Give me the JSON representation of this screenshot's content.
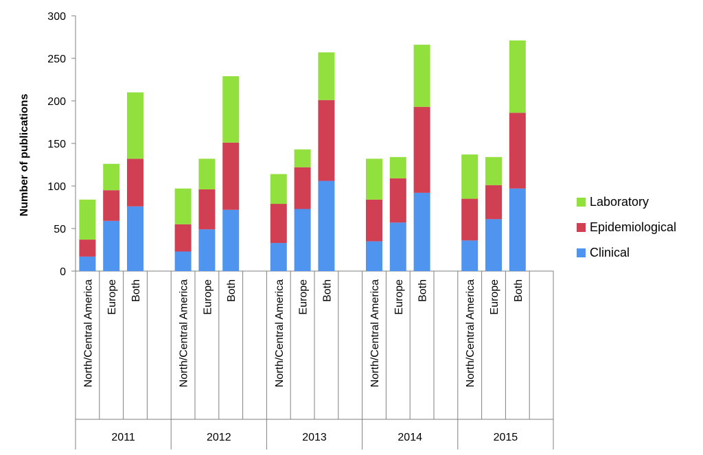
{
  "chart_data": {
    "type": "bar",
    "stacked": true,
    "title": "",
    "xlabel": "",
    "ylabel": "Number of publications",
    "ylim": [
      0,
      300
    ],
    "yticks": [
      0,
      50,
      100,
      150,
      200,
      250,
      300
    ],
    "grid": false,
    "legend_position": "right",
    "groups": [
      "2011",
      "2012",
      "2013",
      "2014",
      "2015"
    ],
    "categories": [
      "North/Central America",
      "Europe",
      "Both",
      "North/Central America",
      "Europe",
      "Both",
      "North/Central America",
      "Europe",
      "Both",
      "North/Central America",
      "Europe",
      "Both",
      "North/Central America",
      "Europe",
      "Both"
    ],
    "series": [
      {
        "name": "Clinical",
        "color": "#4F94EE",
        "values": [
          17,
          59,
          76,
          23,
          49,
          72,
          33,
          73,
          106,
          35,
          57,
          92,
          36,
          61,
          97
        ]
      },
      {
        "name": "Epidemiological",
        "color": "#D03F52",
        "values": [
          20,
          36,
          56,
          32,
          47,
          79,
          46,
          49,
          95,
          49,
          52,
          101,
          49,
          40,
          89
        ]
      },
      {
        "name": "Laboratory",
        "color": "#92E03D",
        "values": [
          47,
          31,
          78,
          42,
          36,
          78,
          35,
          21,
          56,
          48,
          25,
          73,
          52,
          33,
          85
        ]
      }
    ],
    "legend_order": [
      "Laboratory",
      "Epidemiological",
      "Clinical"
    ]
  }
}
